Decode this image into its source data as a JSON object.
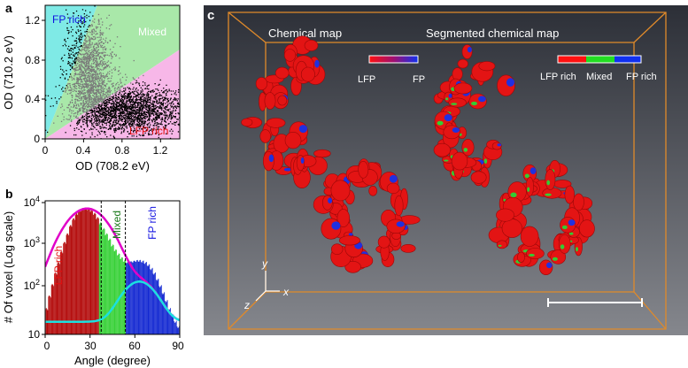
{
  "panel_labels": {
    "a": "a",
    "b": "b",
    "c": "c"
  },
  "panel_a": {
    "region_labels": {
      "fp_rich": "FP rich",
      "mixed": "Mixed",
      "lfp_rich": "LFP rich"
    },
    "xlabel": "OD (708.2 eV)",
    "ylabel": "OD (710.2 eV)",
    "xticks": [
      "0",
      "0.4",
      "0.8",
      "1.2"
    ],
    "yticks": [
      "0",
      "0.4",
      "0.8",
      "1.2"
    ],
    "colors": {
      "fp_region": "#7FEAE6",
      "mixed_region": "#A9E8A9",
      "lfp_region": "#F7B7E8",
      "points": "#000000",
      "mixed_points": "#7A7A7A"
    }
  },
  "panel_b": {
    "xlabel": "Angle (degree)",
    "ylabel": "# Of voxel (Log scale)",
    "xticks": [
      "0",
      "30",
      "60",
      "90"
    ],
    "yticks": [
      "10",
      "10^2",
      "10^3",
      "10^4"
    ],
    "region_labels": {
      "lfp_rich": "LFP rich",
      "mixed": "Mixed",
      "fp_rich": "FP rich"
    },
    "colors": {
      "lfp_bars": "#B00000",
      "mixed_bars": "#2FCF2F",
      "fp_bars": "#0A20D0",
      "fit_total": "#E000C8",
      "fit_fp": "#1AE0E0"
    }
  },
  "panel_c": {
    "left_title": "Chemical map",
    "right_title": "Segmented chemical map",
    "colorbar_left": {
      "low": "LFP",
      "high": "FP"
    },
    "colorbar_right": {
      "lfp": "LFP rich",
      "mixed": "Mixed",
      "fp": "FP rich"
    },
    "axes": {
      "x": "x",
      "y": "y",
      "z": "z"
    },
    "colors": {
      "background_top": "#2C2F37",
      "background_bottom": "#85878D",
      "box": "#E08A2A",
      "particle": "#E31414",
      "fp": "#2030E0",
      "mixed": "#33CC33"
    }
  },
  "chart_data": [
    {
      "type": "scatter",
      "panel": "a",
      "title": "",
      "xlabel": "OD (708.2 eV)",
      "ylabel": "OD (710.2 eV)",
      "xlim": [
        0,
        1.4
      ],
      "ylim": [
        0,
        1.35
      ],
      "regions": [
        "FP rich",
        "Mixed",
        "LFP rich"
      ],
      "clusters": [
        {
          "name": "FP rich",
          "center": [
            0.45,
            0.7
          ],
          "spread": [
            0.12,
            0.25
          ]
        },
        {
          "name": "LFP rich",
          "center": [
            0.85,
            0.3
          ],
          "spread": [
            0.35,
            0.12
          ]
        }
      ]
    },
    {
      "type": "bar",
      "panel": "b",
      "title": "",
      "xlabel": "Angle (degree)",
      "ylabel": "# Of voxel (Log scale)",
      "xlim": [
        0,
        90
      ],
      "ylim": [
        10,
        15000
      ],
      "yscale": "log",
      "x": [
        0,
        2,
        4,
        6,
        8,
        10,
        12,
        14,
        16,
        18,
        20,
        22,
        24,
        26,
        28,
        30,
        32,
        34,
        36,
        38,
        40,
        42,
        44,
        46,
        48,
        50,
        52,
        54,
        56,
        58,
        60,
        62,
        64,
        66,
        68,
        70,
        72,
        74,
        76,
        78,
        80,
        82,
        84,
        86,
        88
      ],
      "values": [
        40,
        80,
        150,
        280,
        500,
        900,
        1500,
        2400,
        3800,
        5500,
        7200,
        8600,
        9500,
        9800,
        9500,
        8700,
        7400,
        5800,
        4400,
        3200,
        2400,
        1800,
        1300,
        1000,
        800,
        650,
        560,
        520,
        520,
        540,
        560,
        560,
        540,
        500,
        440,
        360,
        280,
        200,
        140,
        95,
        62,
        40,
        28,
        20,
        15
      ],
      "series": [
        {
          "name": "LFP rich",
          "range": [
            0,
            36
          ]
        },
        {
          "name": "Mixed",
          "range": [
            36,
            54
          ]
        },
        {
          "name": "FP rich",
          "range": [
            54,
            90
          ]
        }
      ]
    }
  ]
}
